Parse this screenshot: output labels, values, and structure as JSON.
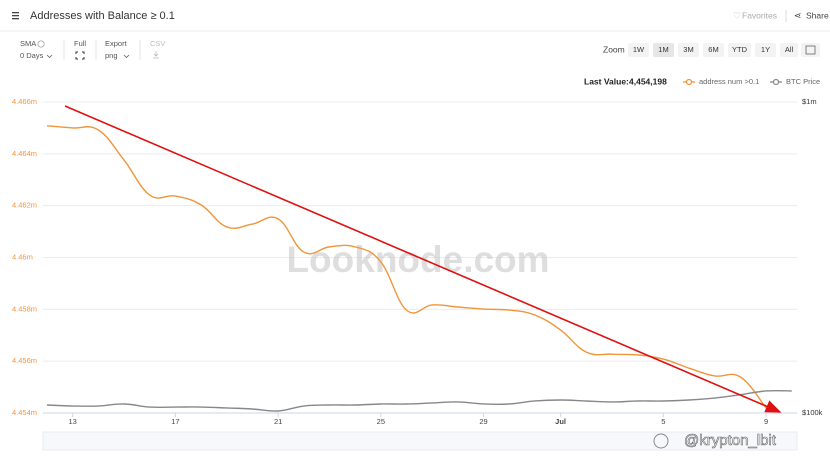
{
  "ui": {
    "title": "Addresses with Balance ≥ 0.1",
    "favorites": "Favorites",
    "share": "Share",
    "sma_label": "SMA",
    "sma_value": "0 Days",
    "full_label": "Full",
    "export_label": "Export",
    "export_value": "png",
    "csv_label": "CSV",
    "zoom_label": "Zoom",
    "zoom": [
      "1W",
      "1M",
      "3M",
      "6M",
      "YTD",
      "1Y",
      "All"
    ],
    "zoom_active": "1M",
    "last_value_label": "Last Value:",
    "last_value": "4,454,198",
    "watermark": "Looknode.com",
    "credit": "@krypton_lbit"
  },
  "chart_data": {
    "type": "line",
    "categories": [
      null,
      "13",
      null,
      null,
      null,
      "17",
      null,
      null,
      null,
      "21",
      null,
      null,
      null,
      "25",
      null,
      null,
      null,
      "29",
      null,
      null,
      "Jul",
      null,
      null,
      null,
      "5",
      null,
      null,
      null,
      "9",
      null
    ],
    "series": [
      {
        "name": "address num >0.1",
        "color": "#f0953a",
        "values": [
          4465080,
          4465000,
          4464920,
          4463760,
          4462410,
          4462370,
          4462030,
          4461180,
          4461290,
          4461490,
          4460210,
          4460410,
          4460410,
          4459830,
          4457970,
          4458170,
          4458090,
          4458010,
          4457970,
          4457780,
          4457200,
          4456350,
          4456270,
          4456240,
          4456080,
          4455730,
          4455430,
          4455390,
          4454198,
          null
        ]
      },
      {
        "name": "BTC Price",
        "color": "#888888",
        "axis": "y2",
        "values": [
          106100,
          105300,
          105300,
          106900,
          104500,
          104500,
          104500,
          103800,
          103000,
          101500,
          105300,
          106100,
          106100,
          106900,
          106900,
          107700,
          108500,
          106900,
          106900,
          109300,
          110100,
          109300,
          108500,
          109300,
          109300,
          110100,
          111700,
          114500,
          117700,
          117700
        ]
      }
    ],
    "ylim": [
      4454000,
      4466000
    ],
    "yticks": [
      {
        "value": 4454000,
        "label": "4.454m"
      },
      {
        "value": 4456000,
        "label": "4.456m"
      },
      {
        "value": 4458000,
        "label": "4.458m"
      },
      {
        "value": 4460000,
        "label": "4.46m"
      },
      {
        "value": 4462000,
        "label": "4.462m"
      },
      {
        "value": 4464000,
        "label": "4.464m"
      },
      {
        "value": 4466000,
        "label": "4.466m"
      }
    ],
    "y2lim": [
      100000,
      1000000
    ],
    "y2log": true,
    "y2ticks": [
      {
        "value": 100000,
        "label": "$100k"
      },
      {
        "value": 1000000,
        "label": "$1m"
      }
    ],
    "grid": true
  }
}
